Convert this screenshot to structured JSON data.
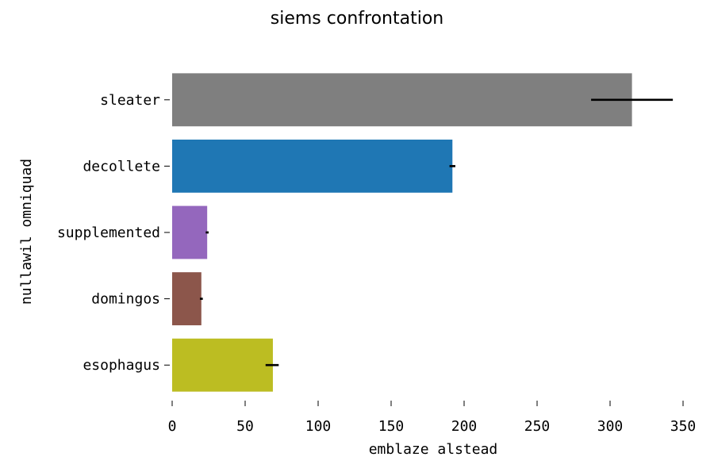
{
  "chart_data": {
    "type": "bar",
    "orientation": "horizontal",
    "title": "siems confrontation",
    "xlabel": "emblaze alstead",
    "ylabel": "nullawil omniquad",
    "categories": [
      "sleater",
      "decollete",
      "supplemented",
      "domingos",
      "esophagus"
    ],
    "values": [
      315,
      192,
      24,
      20,
      69
    ],
    "error_low": [
      287,
      190,
      23,
      19,
      64
    ],
    "error_high": [
      343,
      194,
      25,
      21,
      73
    ],
    "colors": [
      "#7f7f7f",
      "#1f77b4",
      "#9467bd",
      "#8c564b",
      "#bcbd22"
    ],
    "xlim": [
      0,
      350
    ],
    "xticks": [
      0,
      50,
      100,
      150,
      200,
      250,
      300,
      350
    ],
    "grid": false,
    "legend": "none"
  }
}
